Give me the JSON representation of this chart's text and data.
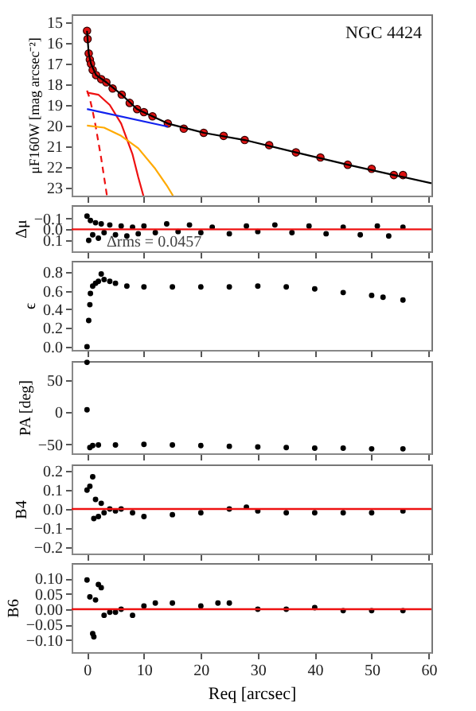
{
  "chart_data": [
    {
      "type": "scatter",
      "annotations": [
        "NGC 4424"
      ],
      "ylabel": "μF160W [mag arcsec⁻²]",
      "xlim": [
        -2.7,
        60.5
      ],
      "ylim": [
        23.4,
        14.6
      ],
      "xticks": [
        0,
        10,
        20,
        30,
        40,
        50,
        60
      ],
      "yticks": [
        15,
        16,
        17,
        18,
        19,
        20,
        21,
        22,
        23
      ],
      "tick_labels": "y",
      "grid": false,
      "series": [
        {
          "color": "#dd1111",
          "marker": "circle",
          "x": [
            0,
            0.1,
            0.3,
            0.5,
            0.7,
            1.0,
            1.6,
            2.5,
            3.4,
            4.5,
            6.1,
            7.5,
            8.8,
            10.0,
            11.5,
            14.2,
            17.0,
            20.5,
            24.0,
            27.7,
            32.0,
            36.7,
            41.0,
            45.8,
            50.0,
            53.9,
            55.5
          ],
          "values": [
            15.4,
            15.8,
            16.5,
            16.8,
            17.0,
            17.3,
            17.55,
            17.75,
            17.9,
            18.2,
            18.5,
            18.9,
            19.2,
            19.35,
            19.55,
            19.9,
            20.15,
            20.35,
            20.5,
            20.7,
            20.95,
            21.3,
            21.55,
            21.9,
            22.1,
            22.4,
            22.4
          ]
        },
        {
          "type": "line",
          "color": "#000000",
          "line_style": "solid",
          "x": [
            0,
            0.3,
            0.7,
            1.6,
            3.4,
            6.1,
            8.8,
            11.5,
            14.2,
            20.5,
            27.7,
            36.7,
            45.8,
            53.9,
            60.5
          ],
          "values": [
            15.4,
            16.5,
            17.0,
            17.55,
            17.9,
            18.5,
            19.2,
            19.55,
            19.9,
            20.35,
            20.7,
            21.3,
            21.9,
            22.4,
            22.8
          ]
        },
        {
          "type": "line",
          "color": "#ee1111",
          "line_style": "dashed",
          "x": [
            0,
            0.5,
            1,
            1.5,
            2,
            2.5,
            3,
            3.5
          ],
          "values": [
            18.3,
            18.7,
            19.3,
            20.0,
            20.8,
            21.6,
            22.5,
            23.4
          ]
        },
        {
          "type": "line",
          "color": "#ee1111",
          "line_style": "solid",
          "x": [
            0,
            2,
            4,
            6,
            8,
            9,
            9.9
          ],
          "values": [
            18.4,
            18.5,
            19.0,
            19.9,
            21.4,
            22.5,
            23.4
          ]
        },
        {
          "type": "line",
          "color": "#1122ee",
          "line_style": "solid",
          "x": [
            0,
            14.2
          ],
          "values": [
            19.2,
            20.05
          ]
        },
        {
          "type": "line",
          "color": "#ffaa00",
          "line_style": "solid",
          "x": [
            0,
            3,
            6,
            9,
            12,
            14,
            15.1
          ],
          "values": [
            20.0,
            20.1,
            20.5,
            21.1,
            22.1,
            22.9,
            23.4
          ]
        }
      ]
    },
    {
      "type": "scatter",
      "annotations": [
        "Δrms = 0.0457"
      ],
      "ylabel": "Δμ",
      "xlim": [
        -2.7,
        60.5
      ],
      "ylim": [
        0.2,
        -0.22
      ],
      "xticks": [
        0,
        10,
        20,
        30,
        40,
        50,
        60
      ],
      "yticks": [
        {
          "value": -0.1,
          "label": "−0.1"
        },
        {
          "value": 0,
          "label": "0.0"
        },
        {
          "value": 0.1,
          "label": "0.1"
        }
      ],
      "tick_labels": "y",
      "grid": false,
      "series": [
        {
          "color": "#000000",
          "x": [
            0,
            0.3,
            0.6,
            1,
            1.5,
            2,
            2.5,
            3,
            4,
            5,
            6,
            7,
            8,
            9,
            10,
            12,
            14,
            16,
            18,
            20,
            22,
            25,
            28,
            30,
            33,
            36,
            39,
            42,
            45,
            48,
            51,
            53,
            55.5
          ],
          "values": [
            -0.12,
            0.1,
            -0.08,
            0.05,
            -0.06,
            0.08,
            -0.05,
            0.03,
            -0.04,
            0.05,
            -0.03,
            0.06,
            -0.02,
            0.04,
            -0.03,
            0.03,
            -0.05,
            0.02,
            -0.04,
            0.03,
            -0.02,
            0.04,
            -0.03,
            0.02,
            -0.04,
            0.03,
            -0.03,
            0.04,
            -0.02,
            0.05,
            -0.03,
            0.06,
            -0.02
          ]
        }
      ],
      "ref_lines": [
        {
          "axis": "y",
          "value": 0,
          "color": "#ee1111"
        }
      ]
    },
    {
      "type": "scatter",
      "ylabel": "ϵ",
      "xlim": [
        -2.7,
        60.5
      ],
      "ylim": [
        -0.035,
        0.92
      ],
      "xticks": [
        0,
        10,
        20,
        30,
        40,
        50,
        60
      ],
      "yticks": [
        {
          "value": 0,
          "label": "0.0"
        },
        {
          "value": 0.2,
          "label": "0.2"
        },
        {
          "value": 0.4,
          "label": "0.4"
        },
        {
          "value": 0.6,
          "label": "0.6"
        },
        {
          "value": 0.8,
          "label": "0.8"
        }
      ],
      "tick_labels": "y",
      "grid": false,
      "series": [
        {
          "color": "#000000",
          "x": [
            0,
            0.3,
            0.5,
            0.6,
            1,
            1.5,
            2,
            2.5,
            3,
            4,
            5,
            7,
            10,
            15,
            20,
            25,
            30,
            35,
            40,
            45,
            50,
            52,
            55.5
          ],
          "values": [
            0.0,
            0.28,
            0.45,
            0.57,
            0.65,
            0.68,
            0.7,
            0.78,
            0.72,
            0.7,
            0.68,
            0.65,
            0.64,
            0.64,
            0.64,
            0.64,
            0.65,
            0.64,
            0.62,
            0.58,
            0.55,
            0.53,
            0.5
          ]
        }
      ]
    },
    {
      "type": "scatter",
      "ylabel": "PA [deg]",
      "xlim": [
        -2.7,
        60.5
      ],
      "ylim": [
        -64,
        80
      ],
      "xticks": [
        0,
        10,
        20,
        30,
        40,
        50,
        60
      ],
      "yticks": [
        {
          "value": -50,
          "label": "−50"
        },
        0,
        50
      ],
      "tick_labels": "y",
      "grid": false,
      "series": [
        {
          "color": "#000000",
          "x": [
            0,
            0,
            0.5,
            1,
            2,
            5,
            10,
            15,
            20,
            25,
            30,
            35,
            40,
            45,
            50,
            55.5
          ],
          "values": [
            78,
            4,
            -55,
            -52,
            -51,
            -51,
            -50,
            -51,
            -52,
            -53,
            -54,
            -55,
            -56,
            -56,
            -57,
            -57
          ]
        }
      ]
    },
    {
      "type": "scatter",
      "ylabel": "B4",
      "xlim": [
        -2.7,
        60.5
      ],
      "ylim": [
        -0.235,
        0.235
      ],
      "xticks": [
        0,
        10,
        20,
        30,
        40,
        50,
        60
      ],
      "yticks": [
        {
          "value": -0.2,
          "label": "−0.2"
        },
        {
          "value": -0.1,
          "label": "−0.1"
        },
        {
          "value": 0,
          "label": "0.0"
        },
        {
          "value": 0.1,
          "label": "0.1"
        },
        {
          "value": 0.2,
          "label": "0.2"
        }
      ],
      "tick_labels": "y",
      "grid": false,
      "series": [
        {
          "color": "#000000",
          "x": [
            0,
            0.5,
            1,
            1.2,
            1.5,
            2,
            2.5,
            3,
            4,
            5,
            6,
            8,
            10,
            15,
            20,
            25,
            28,
            30,
            35,
            40,
            45,
            50,
            55.5
          ],
          "values": [
            0.1,
            0.12,
            0.17,
            -0.05,
            0.05,
            -0.04,
            0.03,
            -0.02,
            0.0,
            -0.01,
            0.0,
            -0.02,
            -0.04,
            -0.03,
            -0.02,
            0.0,
            0.01,
            -0.01,
            -0.02,
            -0.02,
            -0.02,
            -0.02,
            -0.01
          ]
        }
      ],
      "ref_lines": [
        {
          "axis": "y",
          "value": 0,
          "color": "#ee1111"
        }
      ]
    },
    {
      "type": "scatter",
      "ylabel": "B6",
      "xlabel": "Req [arcsec]",
      "xlim": [
        -2.7,
        60.5
      ],
      "ylim": [
        -0.14,
        0.15
      ],
      "xticks": [
        0,
        10,
        20,
        30,
        40,
        50,
        60
      ],
      "yticks": [
        {
          "value": -0.1,
          "label": "−0.10"
        },
        {
          "value": -0.05,
          "label": "−0.05"
        },
        {
          "value": 0,
          "label": "0.00"
        },
        {
          "value": 0.05,
          "label": "0.05"
        },
        {
          "value": 0.1,
          "label": "0.10"
        }
      ],
      "grid": false,
      "series": [
        {
          "color": "#000000",
          "x": [
            0,
            0.5,
            1,
            1.2,
            1.5,
            2,
            2.5,
            3,
            4,
            5,
            6,
            8,
            10,
            12,
            15,
            20,
            23,
            25,
            30,
            35,
            40,
            45,
            50,
            55.5
          ],
          "values": [
            0.095,
            0.04,
            -0.08,
            -0.09,
            0.03,
            0.08,
            0.07,
            -0.02,
            -0.01,
            -0.01,
            0.0,
            -0.02,
            0.01,
            0.02,
            0.02,
            0.01,
            0.02,
            0.02,
            0.0,
            0.0,
            0.005,
            -0.005,
            -0.005,
            -0.005
          ]
        }
      ],
      "ref_lines": [
        {
          "axis": "y",
          "value": 0,
          "color": "#ee1111"
        }
      ]
    }
  ]
}
